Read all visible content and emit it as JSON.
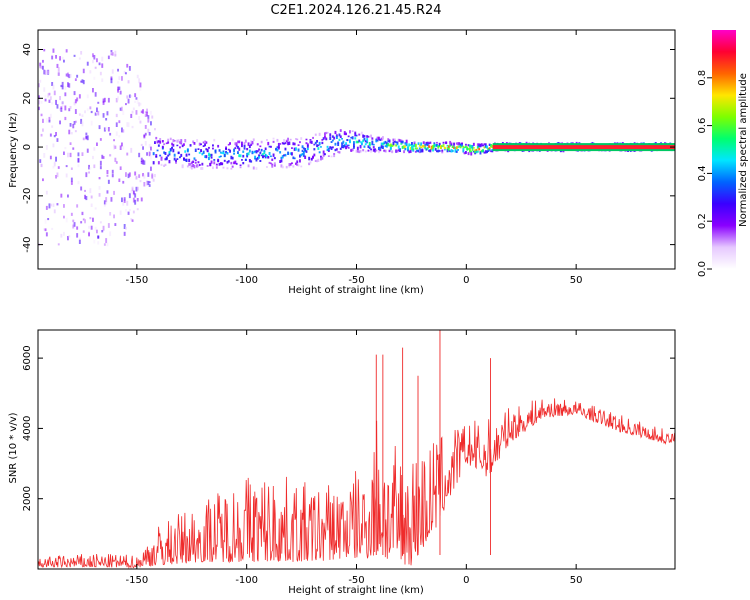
{
  "title": "C2E1.2024.126.21.45.R24",
  "chart_data": [
    {
      "type": "heatmap",
      "xlabel": "Height of straight line (km)",
      "ylabel": "Frequency (Hz)",
      "xlim": [
        -195,
        95
      ],
      "ylim": [
        -50,
        48
      ],
      "xticks": [
        -150,
        -100,
        -50,
        0,
        50
      ],
      "yticks": [
        -40,
        -20,
        0,
        20,
        40
      ],
      "colorbar": {
        "label": "Normalized spectral amplitude",
        "range": [
          0.0,
          1.0
        ],
        "ticks": [
          0.0,
          0.2,
          0.4,
          0.6,
          0.8
        ],
        "colormap": [
          "#ffffff",
          "#e6c8ff",
          "#8a00ff",
          "#3a00ff",
          "#0064ff",
          "#00e6ff",
          "#00ff6e",
          "#7dff00",
          "#ffe600",
          "#ff6400",
          "#ff0032",
          "#ff00c8"
        ]
      },
      "band": [
        {
          "x": -190,
          "center": 0,
          "spread": 40,
          "amplitude": 0.15
        },
        {
          "x": -160,
          "center": 0,
          "spread": 40,
          "amplitude": 0.18
        },
        {
          "x": -150,
          "center": 0,
          "spread": 30,
          "amplitude": 0.2
        },
        {
          "x": -140,
          "center": -2,
          "spread": 6,
          "amplitude": 0.4
        },
        {
          "x": -125,
          "center": -3,
          "spread": 6,
          "amplitude": 0.45
        },
        {
          "x": -100,
          "center": -3,
          "spread": 6,
          "amplitude": 0.45
        },
        {
          "x": -75,
          "center": -2,
          "spread": 6,
          "amplitude": 0.45
        },
        {
          "x": -55,
          "center": 3,
          "spread": 5,
          "amplitude": 0.5
        },
        {
          "x": -40,
          "center": 1,
          "spread": 3,
          "amplitude": 0.55
        },
        {
          "x": -25,
          "center": 0,
          "spread": 2,
          "amplitude": 0.8
        },
        {
          "x": -10,
          "center": 0,
          "spread": 2,
          "amplitude": 0.8
        },
        {
          "x": 5,
          "center": -1,
          "spread": 2,
          "amplitude": 0.85
        },
        {
          "x": 12,
          "center": 0,
          "spread": 1.5,
          "amplitude": 0.95
        },
        {
          "x": 95,
          "center": 0,
          "spread": 1.5,
          "amplitude": 0.95
        }
      ]
    },
    {
      "type": "line",
      "xlabel": "Height of straight line (km)",
      "ylabel": "SNR (10 * v/v)",
      "xlim": [
        -195,
        95
      ],
      "ylim": [
        0,
        6800
      ],
      "xticks": [
        -150,
        -100,
        -50,
        0,
        50
      ],
      "yticks": [
        2000,
        4000,
        6000
      ],
      "color": "#ef2b2b",
      "envelope": [
        {
          "x": -195,
          "low": 50,
          "high": 350
        },
        {
          "x": -170,
          "low": 50,
          "high": 450
        },
        {
          "x": -150,
          "low": 40,
          "high": 400
        },
        {
          "x": -140,
          "low": 100,
          "high": 1300
        },
        {
          "x": -120,
          "low": 200,
          "high": 2000
        },
        {
          "x": -100,
          "low": 200,
          "high": 2800
        },
        {
          "x": -85,
          "low": 200,
          "high": 2700
        },
        {
          "x": -70,
          "low": 200,
          "high": 2400
        },
        {
          "x": -55,
          "low": 300,
          "high": 2700
        },
        {
          "x": -45,
          "low": 300,
          "high": 3000
        },
        {
          "x": -40,
          "low": 400,
          "high": 5000
        },
        {
          "x": -35,
          "low": 200,
          "high": 3500
        },
        {
          "x": -25,
          "low": 100,
          "high": 3500
        },
        {
          "x": -15,
          "low": 1000,
          "high": 3800
        },
        {
          "x": 0,
          "low": 3000,
          "high": 4200
        },
        {
          "x": 10,
          "low": 2600,
          "high": 4300
        },
        {
          "x": 20,
          "low": 3600,
          "high": 4600
        },
        {
          "x": 35,
          "low": 4300,
          "high": 4900
        },
        {
          "x": 50,
          "low": 4400,
          "high": 4800
        },
        {
          "x": 70,
          "low": 3900,
          "high": 4400
        },
        {
          "x": 95,
          "low": 3500,
          "high": 3900
        }
      ],
      "peaks": [
        {
          "x": -41,
          "y": 6100
        },
        {
          "x": -38,
          "y": 6100
        },
        {
          "x": -29,
          "y": 6300
        },
        {
          "x": -22,
          "y": 5500
        },
        {
          "x": -12,
          "y": 6800
        },
        {
          "x": 11,
          "y": 6000
        }
      ]
    }
  ]
}
